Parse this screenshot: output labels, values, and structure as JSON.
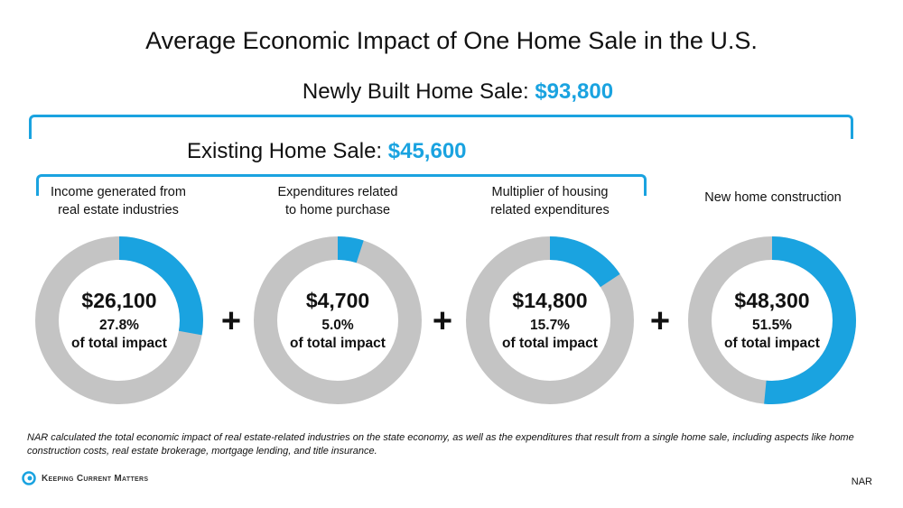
{
  "title": "Average Economic Impact of One Home Sale in the U.S.",
  "newly_built": {
    "label": "Newly Built Home Sale:",
    "value": "$93,800"
  },
  "existing": {
    "label": "Existing Home Sale:",
    "value": "$45,600"
  },
  "plus_symbol": "+",
  "colors": {
    "accent": "#1aa3e0",
    "track": "#c4c4c4"
  },
  "chart_data": [
    {
      "type": "pie",
      "label": "Income generated from real estate industries",
      "label_lines": [
        "Income generated from",
        "real estate industries"
      ],
      "value_text": "$26,100",
      "value": 26100,
      "percent": 27.8,
      "percent_text": "27.8%",
      "sub_text": "of total impact"
    },
    {
      "type": "pie",
      "label": "Expenditures related to home purchase",
      "label_lines": [
        "Expenditures related",
        "to home purchase"
      ],
      "value_text": "$4,700",
      "value": 4700,
      "percent": 5.0,
      "percent_text": "5.0%",
      "sub_text": "of total impact"
    },
    {
      "type": "pie",
      "label": "Multiplier of housing related expenditures",
      "label_lines": [
        "Multiplier of housing",
        "related expenditures"
      ],
      "value_text": "$14,800",
      "value": 14800,
      "percent": 15.7,
      "percent_text": "15.7%",
      "sub_text": "of total impact"
    },
    {
      "type": "pie",
      "label": "New home construction",
      "label_lines": [
        "New home construction"
      ],
      "value_text": "$48,300",
      "value": 48300,
      "percent": 51.5,
      "percent_text": "51.5%",
      "sub_text": "of total impact"
    }
  ],
  "footnote": "NAR calculated the total economic impact of real estate-related industries on the state economy, as well as the expenditures that result from a single home sale, including aspects like home construction costs, real estate brokerage, mortgage lending, and title insurance.",
  "logo_text": "Keeping Current Matters",
  "source": "NAR"
}
